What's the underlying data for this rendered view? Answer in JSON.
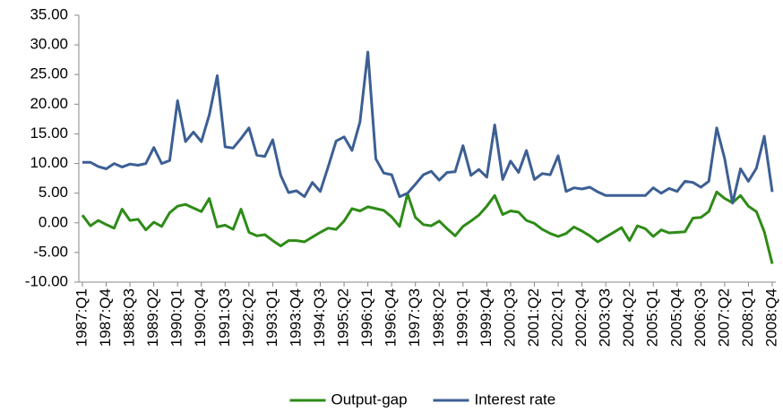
{
  "chart_data": {
    "type": "line",
    "categories": [
      "1987:Q1",
      null,
      null,
      "1987:Q4",
      null,
      null,
      "1988:Q3",
      null,
      null,
      "1989:Q2",
      null,
      null,
      "1990:Q1",
      null,
      null,
      "1990:Q4",
      null,
      null,
      "1991:Q3",
      null,
      null,
      "1992:Q2",
      null,
      null,
      "1993:Q1",
      null,
      null,
      "1993:Q4",
      null,
      null,
      "1994:Q3",
      null,
      null,
      "1995:Q2",
      null,
      null,
      "1996:Q1",
      null,
      null,
      "1996:Q4",
      null,
      null,
      "1997:Q3",
      null,
      null,
      "1998:Q2",
      null,
      null,
      "1999:Q1",
      null,
      null,
      "1999:Q4",
      null,
      null,
      "2000:Q3",
      null,
      null,
      "2001:Q2",
      null,
      null,
      "2002:Q1",
      null,
      null,
      "2002:Q4",
      null,
      null,
      "2003:Q3",
      null,
      null,
      "2004:Q2",
      null,
      null,
      "2005:Q1",
      null,
      null,
      "2005:Q4",
      null,
      null,
      "2006:Q3",
      null,
      null,
      "2007:Q2",
      null,
      null,
      "2008:Q1",
      null,
      null,
      "2008:Q4"
    ],
    "series": [
      {
        "name": "Output-gap",
        "color": "#2e8b17",
        "values": [
          1.3,
          -0.5,
          0.4,
          -0.3,
          -0.9,
          2.3,
          0.4,
          0.6,
          -1.2,
          0.1,
          -0.6,
          1.7,
          2.8,
          3.1,
          2.5,
          1.9,
          4.1,
          -0.7,
          -0.4,
          -1.1,
          2.3,
          -1.6,
          -2.2,
          -2.0,
          -3.0,
          -3.9,
          -3.0,
          -3.0,
          -3.2,
          -2.4,
          -1.6,
          -0.9,
          -1.1,
          0.3,
          2.4,
          2.0,
          2.7,
          2.4,
          2.1,
          1.0,
          -0.6,
          4.9,
          0.9,
          -0.3,
          -0.5,
          0.3,
          -1.0,
          -2.2,
          -0.6,
          0.3,
          1.3,
          2.8,
          4.6,
          1.4,
          2.0,
          1.8,
          0.4,
          -0.1,
          -1.1,
          -1.8,
          -2.3,
          -1.8,
          -0.7,
          -1.4,
          -2.2,
          -3.2,
          -2.4,
          -1.6,
          -0.8,
          -3.0,
          -0.5,
          -1.0,
          -2.3,
          -1.2,
          -1.7,
          -1.6,
          -1.5,
          0.8,
          0.9,
          1.9,
          5.2,
          4.1,
          3.4,
          4.6,
          2.8,
          1.9,
          -1.5,
          -6.9
        ]
      },
      {
        "name": "Interest rate",
        "color": "#3c5f94",
        "values": [
          10.2,
          10.2,
          9.5,
          9.1,
          10.0,
          9.4,
          9.9,
          9.7,
          10.0,
          12.7,
          10.0,
          10.5,
          20.6,
          13.7,
          15.3,
          13.7,
          18.2,
          24.8,
          12.8,
          12.6,
          14.2,
          16.0,
          11.4,
          11.2,
          14.0,
          8.0,
          5.1,
          5.4,
          4.4,
          6.8,
          5.3,
          9.5,
          13.8,
          14.5,
          12.2,
          17.0,
          28.8,
          10.8,
          8.4,
          8.1,
          4.4,
          5.0,
          6.5,
          8.1,
          8.7,
          7.2,
          8.5,
          8.6,
          13.0,
          8.0,
          9.0,
          7.7,
          16.5,
          7.3,
          10.4,
          8.5,
          12.2,
          7.3,
          8.3,
          8.1,
          11.3,
          5.3,
          5.9,
          5.7,
          6.0,
          5.2,
          4.6,
          4.6,
          4.6,
          4.6,
          4.6,
          4.6,
          5.9,
          5.0,
          5.8,
          5.3,
          7.0,
          6.8,
          6.0,
          7.0,
          16.0,
          10.8,
          3.3,
          9.1,
          7.0,
          9.2,
          14.6,
          5.2
        ]
      }
    ],
    "ylim": [
      -10,
      35
    ],
    "yticks": [
      {
        "value": -10,
        "label": "-10.00"
      },
      {
        "value": -5,
        "label": "-5.00"
      },
      {
        "value": 0,
        "label": "0.00"
      },
      {
        "value": 5,
        "label": "5.00"
      },
      {
        "value": 10,
        "label": "10.00"
      },
      {
        "value": 15,
        "label": "15.00"
      },
      {
        "value": 20,
        "label": "20.00"
      },
      {
        "value": 25,
        "label": "25.00"
      },
      {
        "value": 30,
        "label": "30.00"
      },
      {
        "value": 35,
        "label": "35.00"
      }
    ],
    "grid": false,
    "legend": "bottom"
  }
}
